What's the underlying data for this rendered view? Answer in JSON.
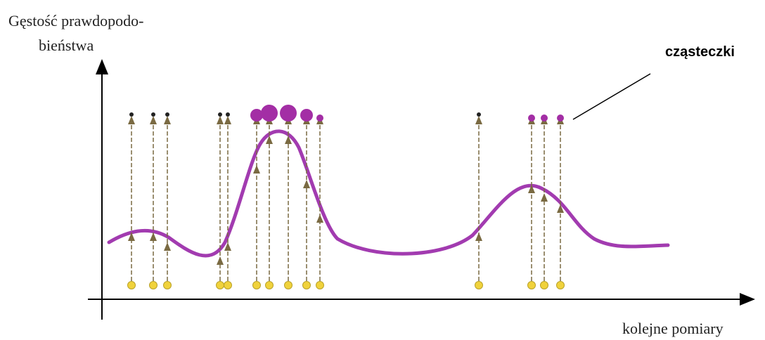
{
  "labels": {
    "y_axis_line1": "Gęstość prawdopodo-",
    "y_axis_line2": "bieństwa",
    "x_axis": "kolejne pomiary",
    "particles": "cząsteczki"
  },
  "colors": {
    "curve": "#a23bb0",
    "particle": "#a32ea5",
    "sample": "#f0d23c",
    "arrow": "#7a6a42",
    "axis": "#000000"
  },
  "icons": {
    "sample": "yellow-circle",
    "particle": "purple-circle",
    "arrow": "triangle-arrowhead"
  }
}
